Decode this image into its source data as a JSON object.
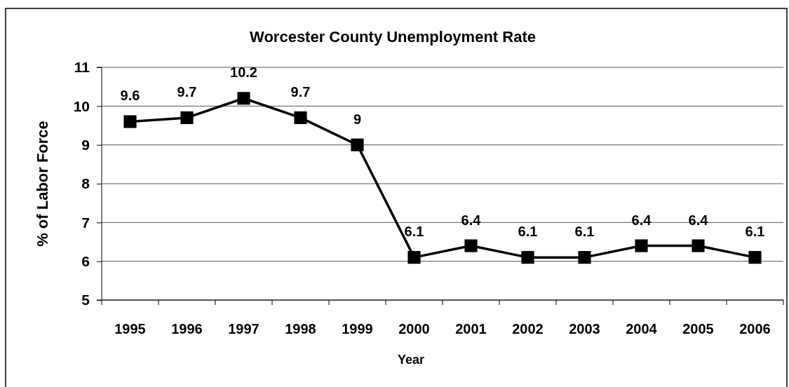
{
  "chart_data": {
    "type": "line",
    "title": "Worcester County Unemployment Rate",
    "xlabel": "Year",
    "ylabel": "% of Labor Force",
    "categories": [
      "1995",
      "1996",
      "1997",
      "1998",
      "1999",
      "2000",
      "2001",
      "2002",
      "2003",
      "2004",
      "2005",
      "2006"
    ],
    "series": [
      {
        "color": "#000000",
        "values": [
          9.6,
          9.7,
          10.2,
          9.7,
          9,
          6.1,
          6.4,
          6.1,
          6.1,
          6.4,
          6.4,
          6.1
        ]
      }
    ],
    "ylim": [
      5,
      11
    ],
    "yticks": [
      5,
      6,
      7,
      8,
      9,
      10,
      11
    ],
    "grid": "y",
    "marker": "square",
    "line_style": "solid",
    "data_labels": true
  }
}
